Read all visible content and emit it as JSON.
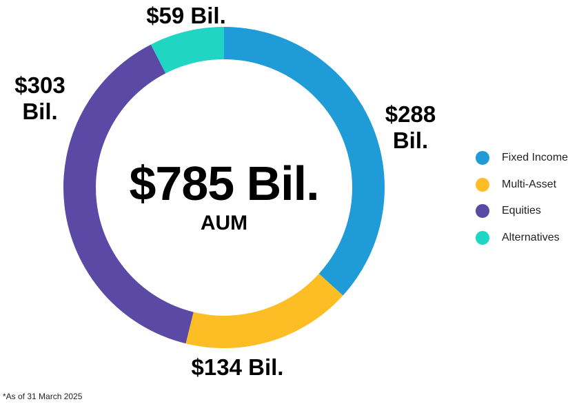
{
  "chart_data": {
    "type": "donut",
    "center": {
      "value": "$785 Bil.",
      "label": "AUM"
    },
    "series": [
      {
        "name": "Fixed Income",
        "value": 288,
        "data_label": "$288 Bil.",
        "color": "#1f9bd7"
      },
      {
        "name": "Multi-Asset",
        "value": 134,
        "data_label": "$134 Bil.",
        "color": "#fdbd25"
      },
      {
        "name": "Equities",
        "value": 303,
        "data_label": "$303 Bil.",
        "color": "#5a4aa6"
      },
      {
        "name": "Alternatives",
        "value": 59,
        "data_label": "$59 Bil.",
        "color": "#20d6c3"
      }
    ],
    "unit": "Bil.",
    "legend_position": "right",
    "footnote": "*As of 31 March 2025"
  }
}
